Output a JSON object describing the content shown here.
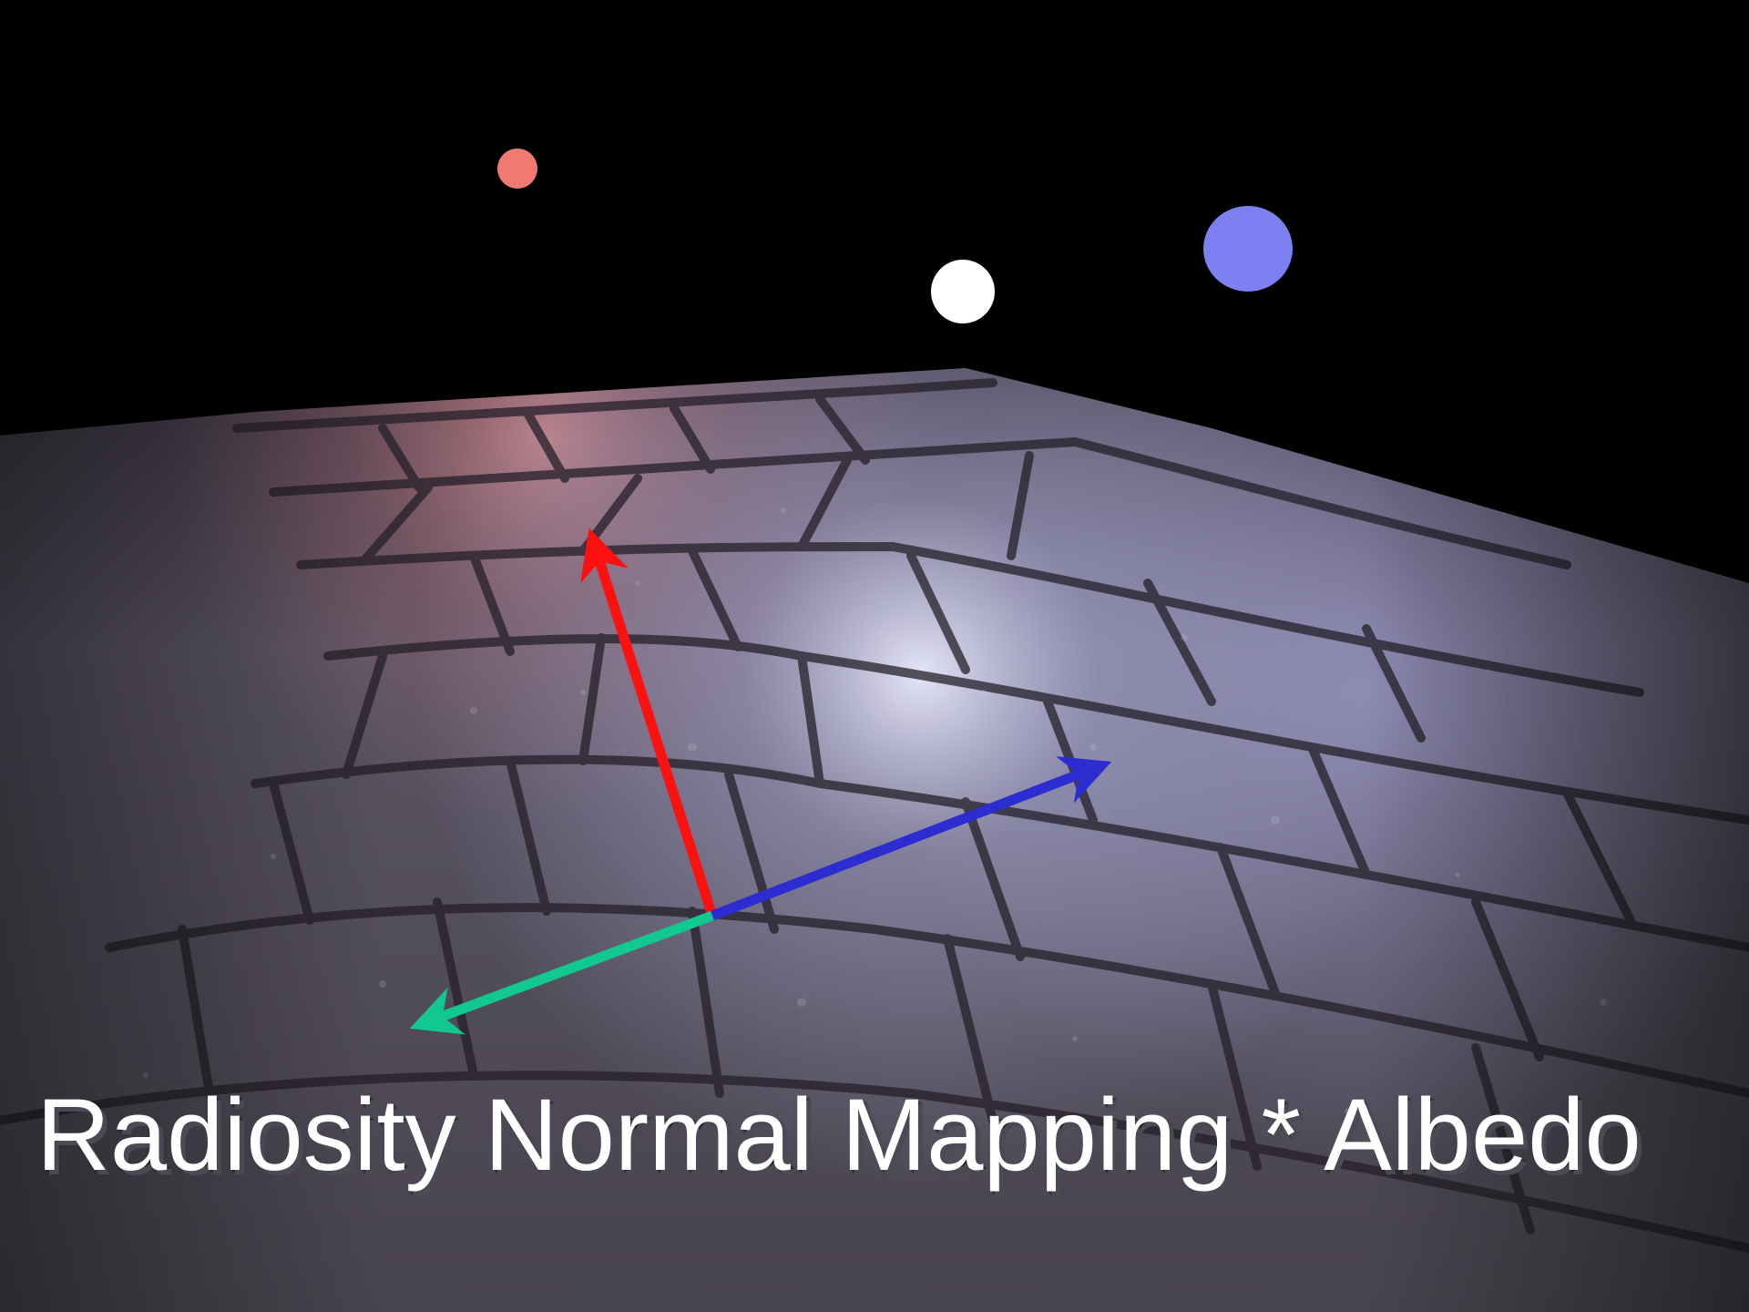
{
  "caption": "Radiosity Normal Mapping * Albedo",
  "colors": {
    "background": "#000000",
    "light_red": "#f07a72",
    "light_white": "#ffffff",
    "light_blue": "#7d80f0",
    "axis_red": "#ff1010",
    "axis_blue": "#2c2cd0",
    "axis_green": "#10c890",
    "floor_base": "#5c5868",
    "floor_highlight": "#c8c8e8",
    "floor_warm": "#9a6a74"
  },
  "icons": {
    "light_red": "red-light-sphere",
    "light_white": "white-light-sphere",
    "light_blue": "blue-light-sphere",
    "axis_red": "red-basis-arrow",
    "axis_blue": "blue-basis-arrow",
    "axis_green": "green-basis-arrow"
  }
}
